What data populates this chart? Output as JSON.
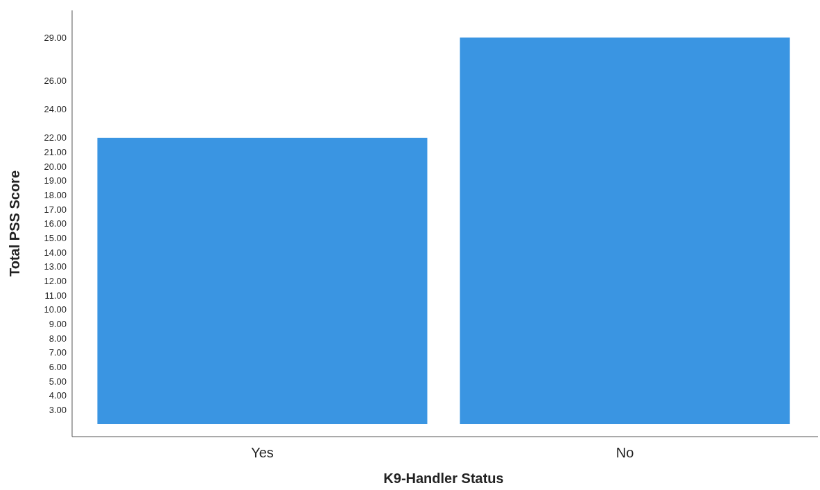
{
  "chart_data": {
    "type": "bar",
    "xlabel": "K9-Handler Status",
    "ylabel": "Total PSS Score",
    "categories": [
      "Yes",
      "No"
    ],
    "values": [
      22,
      29
    ],
    "color": "#3a95e2",
    "ylim": [
      2,
      30.9
    ],
    "yticks": [
      {
        "value": 3,
        "label": "3.00"
      },
      {
        "value": 4,
        "label": "4.00"
      },
      {
        "value": 5,
        "label": "5.00"
      },
      {
        "value": 6,
        "label": "6.00"
      },
      {
        "value": 7,
        "label": "7.00"
      },
      {
        "value": 8,
        "label": "8.00"
      },
      {
        "value": 9,
        "label": "9.00"
      },
      {
        "value": 10,
        "label": "10.00"
      },
      {
        "value": 11,
        "label": "11.00"
      },
      {
        "value": 12,
        "label": "12.00"
      },
      {
        "value": 13,
        "label": "13.00"
      },
      {
        "value": 14,
        "label": "14.00"
      },
      {
        "value": 15,
        "label": "15.00"
      },
      {
        "value": 16,
        "label": "16.00"
      },
      {
        "value": 17,
        "label": "17.00"
      },
      {
        "value": 18,
        "label": "18.00"
      },
      {
        "value": 19,
        "label": "19.00"
      },
      {
        "value": 20,
        "label": "20.00"
      },
      {
        "value": 21,
        "label": "21.00"
      },
      {
        "value": 22,
        "label": "22.00"
      },
      {
        "value": 24,
        "label": "24.00"
      },
      {
        "value": 26,
        "label": "26.00"
      },
      {
        "value": 29,
        "label": "29.00"
      }
    ],
    "grid": false
  }
}
